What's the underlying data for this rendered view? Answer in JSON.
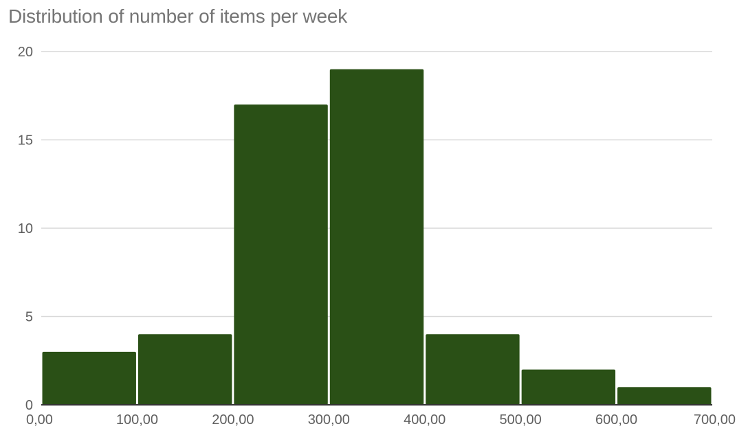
{
  "chart_data": {
    "type": "bar",
    "subtype": "histogram",
    "title": "Distribution of number of items per week",
    "xlabel": "",
    "ylabel": "",
    "bins": [
      {
        "start": 0,
        "end": 100,
        "count": 3
      },
      {
        "start": 100,
        "end": 200,
        "count": 4
      },
      {
        "start": 200,
        "end": 300,
        "count": 17
      },
      {
        "start": 300,
        "end": 400,
        "count": 19
      },
      {
        "start": 400,
        "end": 500,
        "count": 4
      },
      {
        "start": 500,
        "end": 600,
        "count": 2
      },
      {
        "start": 600,
        "end": 700,
        "count": 1
      }
    ],
    "x_ticks": [
      0,
      100,
      200,
      300,
      400,
      500,
      600,
      700
    ],
    "x_tick_labels": [
      "0,00",
      "100,00",
      "200,00",
      "300,00",
      "400,00",
      "500,00",
      "600,00",
      "700,00"
    ],
    "y_ticks": [
      0,
      5,
      10,
      15,
      20
    ],
    "y_tick_labels": [
      "0",
      "5",
      "10",
      "15",
      "20"
    ],
    "xlim": [
      0,
      700
    ],
    "ylim": [
      0,
      20
    ],
    "grid": true,
    "legend": "none",
    "colors": {
      "bar": "#2a5016",
      "grid": "#d9d9d9",
      "baseline": "#333333",
      "text": "#5f5f5f",
      "title": "#757575"
    }
  }
}
